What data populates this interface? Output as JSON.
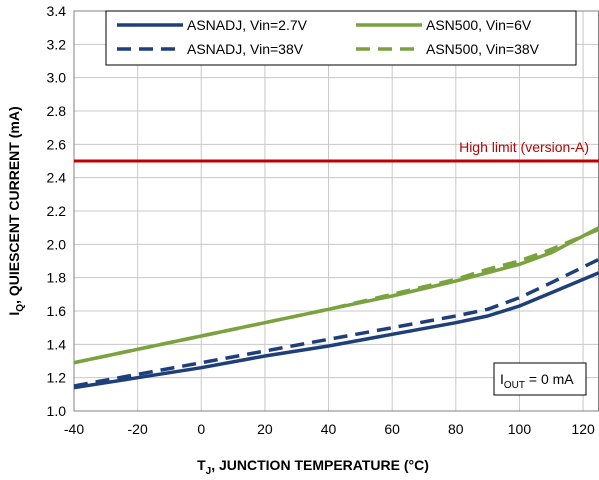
{
  "chart_data": {
    "type": "line",
    "xlabel": "T",
    "xlabel_sub": "J",
    "xlabel_rest": ", JUNCTION TEMPERATURE (°C)",
    "ylabel": "I",
    "ylabel_sub": "Q",
    "ylabel_rest": ", QUIESCENT CURRENT (mA)",
    "xlim": [
      -40,
      125
    ],
    "ylim": [
      1.0,
      3.4
    ],
    "xticks": [
      -40,
      -20,
      0,
      20,
      40,
      60,
      80,
      100,
      120
    ],
    "yticks": [
      "1.0",
      "1.2",
      "1.4",
      "1.6",
      "1.8",
      "2.0",
      "2.2",
      "2.4",
      "2.6",
      "2.8",
      "3.0",
      "3.2",
      "3.4"
    ],
    "grid": true,
    "legend_position": "top",
    "series": [
      {
        "name": "ASNADJ, Vin=2.7V",
        "color": "#1f3f7a",
        "style": "solid",
        "x": [
          -40,
          -20,
          0,
          20,
          40,
          60,
          80,
          90,
          100,
          110,
          125
        ],
        "y": [
          1.14,
          1.2,
          1.26,
          1.33,
          1.39,
          1.46,
          1.53,
          1.57,
          1.63,
          1.71,
          1.83
        ]
      },
      {
        "name": "ASNADJ, Vin=38V",
        "color": "#1f3f7a",
        "style": "dashed",
        "x": [
          -40,
          -20,
          0,
          20,
          40,
          60,
          80,
          90,
          100,
          110,
          125
        ],
        "y": [
          1.15,
          1.22,
          1.29,
          1.36,
          1.43,
          1.5,
          1.57,
          1.61,
          1.68,
          1.77,
          1.91
        ]
      },
      {
        "name": "ASN500, Vin=6V",
        "color": "#7aa23f",
        "style": "solid",
        "x": [
          -40,
          -20,
          0,
          20,
          40,
          60,
          80,
          90,
          100,
          110,
          125
        ],
        "y": [
          1.29,
          1.37,
          1.45,
          1.53,
          1.61,
          1.69,
          1.78,
          1.83,
          1.88,
          1.95,
          2.1
        ]
      },
      {
        "name": "ASN500, Vin=38V",
        "color": "#7aa23f",
        "style": "dashed",
        "x": [
          -40,
          -20,
          0,
          20,
          40,
          60,
          80,
          90,
          100,
          110,
          125
        ],
        "y": [
          1.29,
          1.37,
          1.45,
          1.53,
          1.61,
          1.7,
          1.79,
          1.85,
          1.9,
          1.97,
          2.09
        ]
      }
    ],
    "reference_line": {
      "y": 2.5,
      "label": "High limit (version-A)",
      "color": "#c00000"
    },
    "annotation": {
      "label": "I",
      "sub": "OUT",
      "rest": " = 0 mA"
    }
  }
}
